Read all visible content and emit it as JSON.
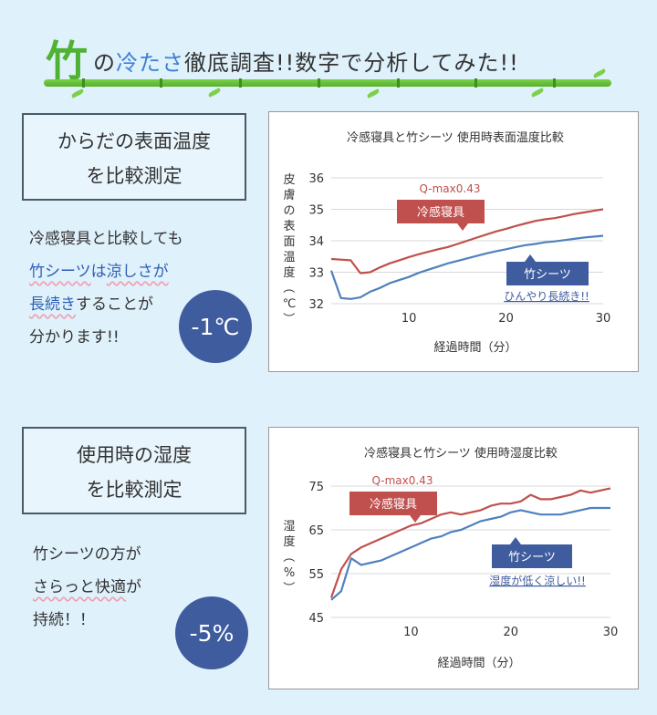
{
  "header": {
    "title_big": "竹",
    "title_no": "の",
    "title_highlight": "冷たさ",
    "title_rest": "徹底調査!!数字で分析してみた!!"
  },
  "section1": {
    "box_line1": "からだの表面温度",
    "box_line2": "を比較測定",
    "text_line1": "冷感寝具と比較しても",
    "text_l2_a": "竹シーツ",
    "text_l2_b": "は",
    "text_l2_c": "涼しさが",
    "text_l3_a": "長続き",
    "text_l3_b": "することが",
    "text_line4": "分かります!!",
    "badge": "-1℃"
  },
  "section2": {
    "box_line1": "使用時の湿度",
    "box_line2": "を比較測定",
    "text_line1": "竹シーツの方が",
    "text_l2_a": "さらっと快適",
    "text_l2_b": "が",
    "text_line3": "持続！！",
    "badge": "-5%"
  },
  "colors": {
    "red": "#c0504d",
    "blue": "#4f81bd",
    "grid": "#d9d9d9"
  },
  "chart_data": [
    {
      "type": "line",
      "title": "冷感寝具と竹シーツ 使用時表面温度比較",
      "xlabel": "経過時間（分）",
      "ylabel": "皮膚の表面温度（℃）",
      "xlim": [
        2,
        30
      ],
      "ylim": [
        32,
        36
      ],
      "xticks": [
        10,
        20,
        30
      ],
      "yticks": [
        32,
        33,
        34,
        35,
        36
      ],
      "grid": "horizontal",
      "series": [
        {
          "name": "冷感寝具",
          "sublabel": "Q-max0.43",
          "color": "#c0504d",
          "x": [
            2,
            3,
            4,
            5,
            6,
            7,
            8,
            9,
            10,
            11,
            12,
            13,
            14,
            15,
            16,
            17,
            18,
            19,
            20,
            21,
            22,
            23,
            24,
            25,
            26,
            27,
            28,
            29,
            30
          ],
          "values": [
            33.42,
            33.4,
            33.38,
            32.97,
            33.0,
            33.15,
            33.28,
            33.38,
            33.48,
            33.57,
            33.65,
            33.73,
            33.8,
            33.9,
            34.0,
            34.1,
            34.2,
            34.3,
            34.38,
            34.47,
            34.55,
            34.63,
            34.68,
            34.72,
            34.78,
            34.85,
            34.9,
            34.95,
            35.0
          ]
        },
        {
          "name": "竹シーツ",
          "annotation": "ひんやり長続き!!",
          "color": "#4f81bd",
          "x": [
            2,
            3,
            4,
            5,
            6,
            7,
            8,
            9,
            10,
            11,
            12,
            13,
            14,
            15,
            16,
            17,
            18,
            19,
            20,
            21,
            22,
            23,
            24,
            25,
            26,
            27,
            28,
            29,
            30
          ],
          "values": [
            33.05,
            32.18,
            32.15,
            32.2,
            32.38,
            32.5,
            32.65,
            32.75,
            32.85,
            32.98,
            33.08,
            33.18,
            33.28,
            33.36,
            33.44,
            33.52,
            33.6,
            33.67,
            33.73,
            33.8,
            33.86,
            33.9,
            33.95,
            33.98,
            34.02,
            34.06,
            34.1,
            34.13,
            34.16
          ]
        }
      ]
    },
    {
      "type": "line",
      "title": "冷感寝具と竹シーツ 使用時湿度比較",
      "xlabel": "経過時間（分）",
      "ylabel": "湿度（%）",
      "xlim": [
        2,
        30
      ],
      "ylim": [
        45,
        80
      ],
      "xticks": [
        10,
        20,
        30
      ],
      "yticks": [
        45,
        55,
        65,
        75
      ],
      "grid": "horizontal",
      "series": [
        {
          "name": "冷感寝具",
          "sublabel": "Q-max0.43",
          "color": "#c0504d",
          "x": [
            2,
            3,
            4,
            5,
            6,
            7,
            8,
            9,
            10,
            11,
            12,
            13,
            14,
            15,
            16,
            17,
            18,
            19,
            20,
            21,
            22,
            23,
            24,
            25,
            26,
            27,
            28,
            29,
            30
          ],
          "values": [
            49.5,
            56,
            59.5,
            61,
            62,
            63,
            64,
            65,
            66,
            66.5,
            67.5,
            68.5,
            69,
            68.5,
            69,
            69.5,
            70.5,
            71,
            71,
            71.5,
            73,
            72,
            72,
            72.5,
            73,
            74,
            73.5,
            74,
            74.5
          ]
        },
        {
          "name": "竹シーツ",
          "annotation": "湿度が低く涼しい!!",
          "color": "#4f81bd",
          "x": [
            2,
            3,
            4,
            5,
            6,
            7,
            8,
            9,
            10,
            11,
            12,
            13,
            14,
            15,
            16,
            17,
            18,
            19,
            20,
            21,
            22,
            23,
            24,
            25,
            26,
            27,
            28,
            29,
            30
          ],
          "values": [
            49,
            51,
            58.5,
            57,
            57.5,
            58,
            59,
            60,
            61,
            62,
            63,
            63.5,
            64.5,
            65,
            66,
            67,
            67.5,
            68,
            69,
            69.5,
            69,
            68.5,
            68.5,
            68.5,
            69,
            69.5,
            70,
            70,
            70
          ]
        }
      ]
    }
  ]
}
